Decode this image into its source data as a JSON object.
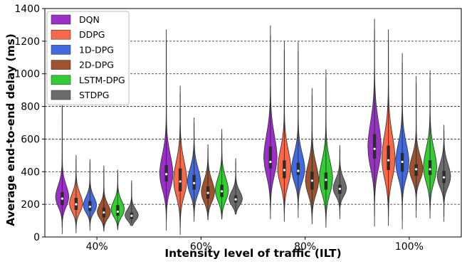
{
  "chart_data": {
    "type": "violin",
    "title": "",
    "xlabel": "Intensity level of traffic (ILT)",
    "ylabel": "Average end-to-end  delay (ms)",
    "ylim": [
      0,
      1400
    ],
    "yticks": [
      0,
      200,
      400,
      600,
      800,
      1000,
      1200,
      1400
    ],
    "grid": "horizontal dashed",
    "legend_position": "top-left",
    "categories": [
      "40%",
      "60%",
      "80%",
      "100%"
    ],
    "series": [
      {
        "name": "DQN",
        "color": "#9b30c8",
        "values": [
          {
            "min": 20,
            "max": 840,
            "q1": 195,
            "median": 235,
            "q3": 275,
            "mode": 240,
            "spread": 75
          },
          {
            "min": 40,
            "max": 1270,
            "q1": 340,
            "median": 385,
            "q3": 440,
            "mode": 380,
            "spread": 120
          },
          {
            "min": 110,
            "max": 1295,
            "q1": 420,
            "median": 460,
            "q3": 555,
            "mode": 480,
            "spread": 140
          },
          {
            "min": 65,
            "max": 1335,
            "q1": 480,
            "median": 540,
            "q3": 630,
            "mode": 540,
            "spread": 160
          }
        ]
      },
      {
        "name": "DDPG",
        "color": "#f8694a",
        "values": [
          {
            "min": 25,
            "max": 500,
            "q1": 165,
            "median": 200,
            "q3": 240,
            "mode": 200,
            "spread": 65
          },
          {
            "min": 15,
            "max": 925,
            "q1": 280,
            "median": 340,
            "q3": 420,
            "mode": 340,
            "spread": 120
          },
          {
            "min": 95,
            "max": 1200,
            "q1": 360,
            "median": 410,
            "q3": 470,
            "mode": 410,
            "spread": 120
          },
          {
            "min": 70,
            "max": 1270,
            "q1": 410,
            "median": 470,
            "q3": 560,
            "mode": 470,
            "spread": 150
          }
        ]
      },
      {
        "name": "1D-DPG",
        "color": "#4169e1",
        "values": [
          {
            "min": 40,
            "max": 475,
            "q1": 160,
            "median": 185,
            "q3": 220,
            "mode": 190,
            "spread": 55
          },
          {
            "min": 95,
            "max": 730,
            "q1": 290,
            "median": 330,
            "q3": 380,
            "mode": 330,
            "spread": 90
          },
          {
            "min": 120,
            "max": 1195,
            "q1": 380,
            "median": 405,
            "q3": 455,
            "mode": 410,
            "spread": 100
          },
          {
            "min": 50,
            "max": 1125,
            "q1": 400,
            "median": 460,
            "q3": 515,
            "mode": 450,
            "spread": 120
          }
        ]
      },
      {
        "name": "2D-DPG",
        "color": "#a0522d",
        "values": [
          {
            "min": 35,
            "max": 435,
            "q1": 120,
            "median": 150,
            "q3": 180,
            "mode": 150,
            "spread": 50
          },
          {
            "min": 105,
            "max": 565,
            "q1": 235,
            "median": 270,
            "q3": 310,
            "mode": 270,
            "spread": 75
          },
          {
            "min": 80,
            "max": 910,
            "q1": 290,
            "median": 345,
            "q3": 400,
            "mode": 340,
            "spread": 105
          },
          {
            "min": 120,
            "max": 985,
            "q1": 375,
            "median": 415,
            "q3": 445,
            "mode": 410,
            "spread": 85
          }
        ]
      },
      {
        "name": "LSTM-DPG",
        "color": "#32cd32",
        "values": [
          {
            "min": 45,
            "max": 410,
            "q1": 130,
            "median": 155,
            "q3": 195,
            "mode": 165,
            "spread": 55
          },
          {
            "min": 110,
            "max": 660,
            "q1": 245,
            "median": 280,
            "q3": 320,
            "mode": 280,
            "spread": 80
          },
          {
            "min": 60,
            "max": 1025,
            "q1": 290,
            "median": 350,
            "q3": 395,
            "mode": 350,
            "spread": 115
          },
          {
            "min": 115,
            "max": 1020,
            "q1": 380,
            "median": 415,
            "q3": 470,
            "mode": 420,
            "spread": 115
          }
        ]
      },
      {
        "name": "STDPG",
        "color": "#6b6b6b",
        "values": [
          {
            "min": 70,
            "max": 345,
            "q1": 110,
            "median": 130,
            "q3": 150,
            "mode": 130,
            "spread": 40
          },
          {
            "min": 140,
            "max": 480,
            "q1": 210,
            "median": 230,
            "q3": 255,
            "mode": 230,
            "spread": 50
          },
          {
            "min": 110,
            "max": 560,
            "q1": 265,
            "median": 295,
            "q3": 320,
            "mode": 295,
            "spread": 60
          },
          {
            "min": 95,
            "max": 685,
            "q1": 330,
            "median": 365,
            "q3": 405,
            "mode": 365,
            "spread": 80
          }
        ]
      }
    ]
  }
}
